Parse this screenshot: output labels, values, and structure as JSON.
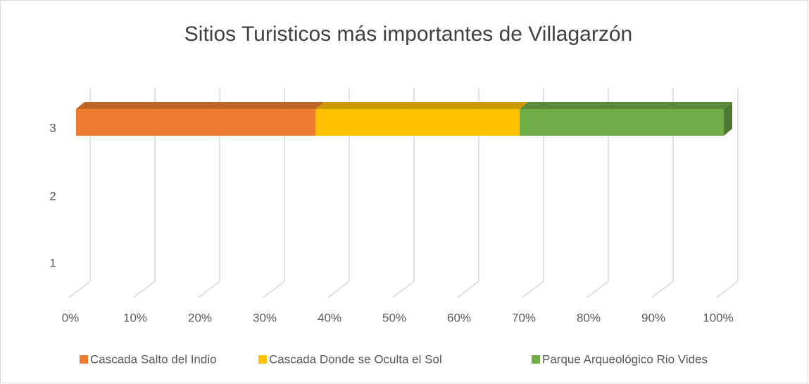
{
  "chart_data": {
    "type": "bar3d_stacked_horizontal",
    "title": "Sitios Turisticos más importantes de Villagarzón",
    "categories": [
      "1",
      "2",
      "3"
    ],
    "series": [
      {
        "name": "Cascada Salto del Indio",
        "color": "#ED7D31",
        "values": [
          null,
          null,
          37
        ]
      },
      {
        "name": "Cascada Donde se Oculta el Sol",
        "color": "#FFC000",
        "values": [
          null,
          null,
          31.5
        ]
      },
      {
        "name": "Parque Arqueológico Rio Vides",
        "color": "#70AD47",
        "values": [
          null,
          null,
          31.5
        ]
      }
    ],
    "xlim": [
      0,
      100
    ],
    "xticks": [
      {
        "value": 0,
        "label": "0%"
      },
      {
        "value": 10,
        "label": "10%"
      },
      {
        "value": 20,
        "label": "20%"
      },
      {
        "value": 30,
        "label": "30%"
      },
      {
        "value": 40,
        "label": "40%"
      },
      {
        "value": 50,
        "label": "50%"
      },
      {
        "value": 60,
        "label": "60%"
      },
      {
        "value": 70,
        "label": "70%"
      },
      {
        "value": 80,
        "label": "80%"
      },
      {
        "value": 90,
        "label": "90%"
      },
      {
        "value": 100,
        "label": "100%"
      }
    ],
    "grid": true,
    "legend": "bottom"
  }
}
